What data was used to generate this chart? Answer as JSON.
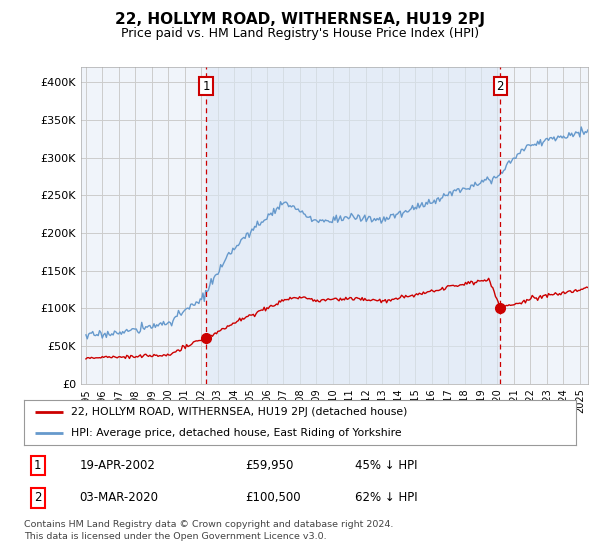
{
  "title": "22, HOLLYM ROAD, WITHERNSEA, HU19 2PJ",
  "subtitle": "Price paid vs. HM Land Registry's House Price Index (HPI)",
  "title_fontsize": 11,
  "subtitle_fontsize": 9,
  "ylabel_ticks": [
    "£0",
    "£50K",
    "£100K",
    "£150K",
    "£200K",
    "£250K",
    "£300K",
    "£350K",
    "£400K"
  ],
  "ytick_values": [
    0,
    50000,
    100000,
    150000,
    200000,
    250000,
    300000,
    350000,
    400000
  ],
  "ylim": [
    0,
    420000
  ],
  "xlim_start": 1994.7,
  "xlim_end": 2025.5,
  "background_color": "#ffffff",
  "chart_bg_color": "#f0f4fa",
  "grid_color": "#cccccc",
  "red_line_color": "#cc0000",
  "blue_line_color": "#6699cc",
  "shade_color": "#dce8f5",
  "sale1_year": 2002.29,
  "sale1_price": 59950,
  "sale2_year": 2020.17,
  "sale2_price": 100500,
  "legend_line1": "22, HOLLYM ROAD, WITHERNSEA, HU19 2PJ (detached house)",
  "legend_line2": "HPI: Average price, detached house, East Riding of Yorkshire",
  "table_row1": [
    "1",
    "19-APR-2002",
    "£59,950",
    "45% ↓ HPI"
  ],
  "table_row2": [
    "2",
    "03-MAR-2020",
    "£100,500",
    "62% ↓ HPI"
  ],
  "footnote1": "Contains HM Land Registry data © Crown copyright and database right 2024.",
  "footnote2": "This data is licensed under the Open Government Licence v3.0."
}
